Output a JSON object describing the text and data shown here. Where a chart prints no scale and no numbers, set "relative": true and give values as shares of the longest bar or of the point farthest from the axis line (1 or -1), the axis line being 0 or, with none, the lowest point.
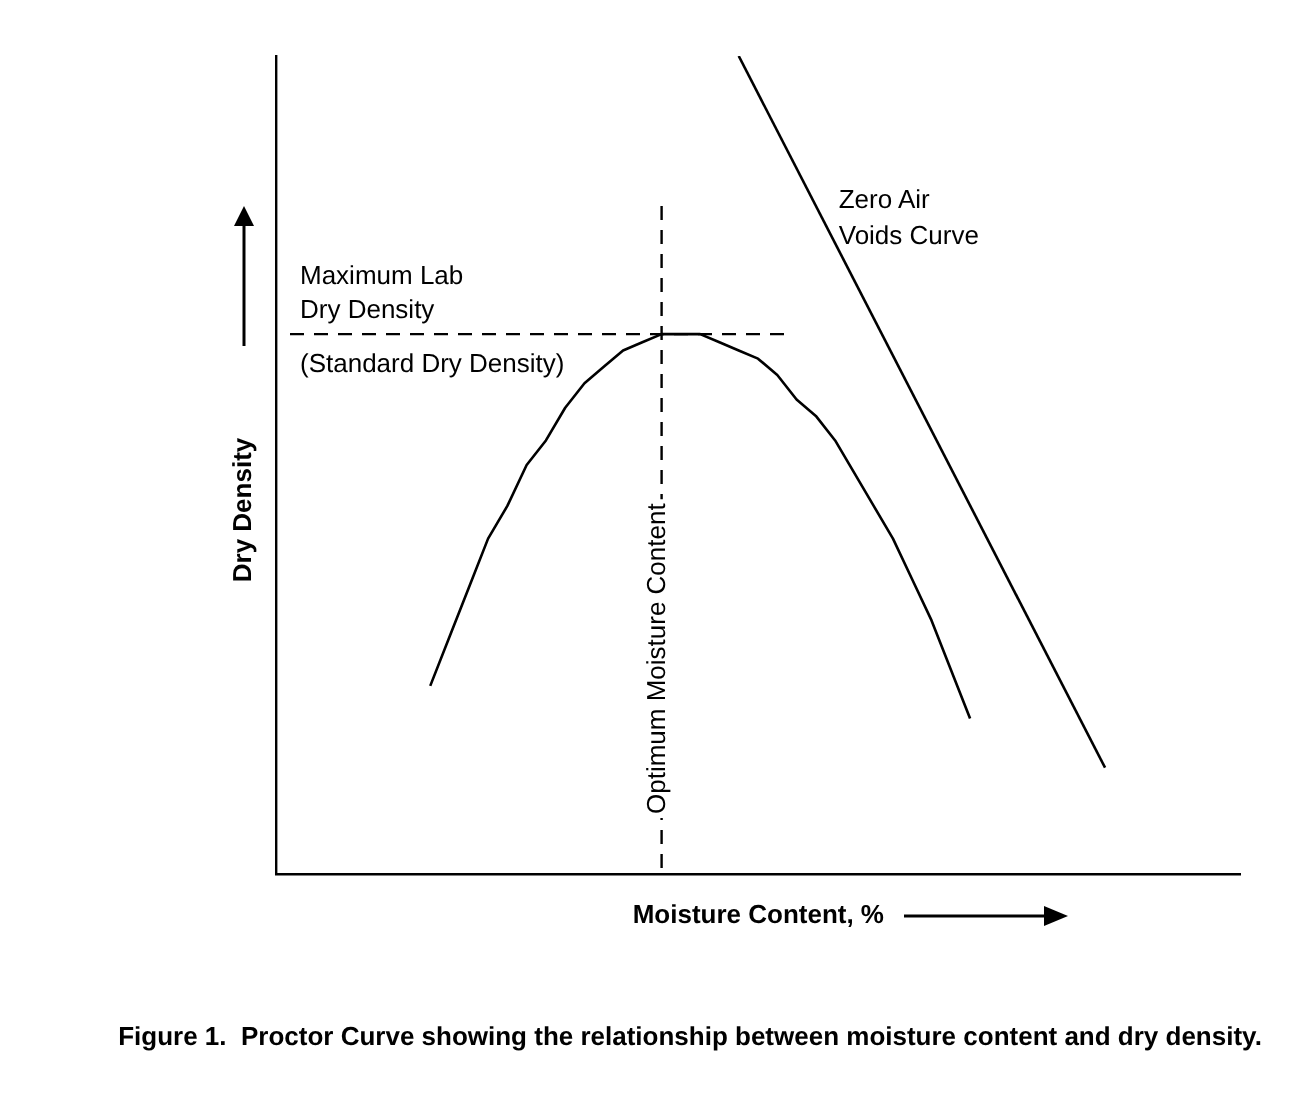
{
  "chart_data": {
    "type": "line",
    "relative": true,
    "title": "Figure 1.  Proctor Curve showing the relationship between moisture content and dry density.",
    "xlabel": "Moisture Content, %",
    "ylabel": "Dry Density",
    "grid": false,
    "legend": false,
    "marker": "none",
    "line_style": "solid",
    "categories": [
      null,
      null,
      null,
      null,
      null,
      null,
      null,
      null,
      null,
      null,
      null,
      null,
      null,
      null,
      null,
      null,
      null,
      null,
      null,
      null,
      null,
      null,
      null,
      null,
      null,
      null,
      null,
      null,
      null,
      null,
      null,
      null,
      null,
      null,
      null,
      null,
      null,
      null,
      null,
      null,
      null,
      null,
      null,
      null,
      null,
      null,
      null,
      null,
      null,
      null,
      null
    ],
    "series": [
      {
        "color": "#000000",
        "values": [
          null,
          null,
          null,
          null,
          null,
          null,
          null,
          null,
          0.23,
          0.29,
          0.35,
          0.41,
          0.45,
          0.5,
          0.53,
          0.57,
          0.6,
          0.62,
          0.64,
          0.65,
          0.66,
          0.66,
          0.66,
          0.65,
          0.64,
          0.63,
          0.61,
          0.58,
          0.56,
          0.53,
          0.49,
          0.45,
          0.41,
          0.36,
          0.31,
          0.25,
          0.19,
          null,
          null,
          null,
          null,
          null,
          null,
          null,
          null,
          null,
          null,
          null,
          null,
          null,
          null
        ]
      },
      {
        "name": "Zero Air\nVoids Curve",
        "color": "#000000",
        "values": [
          null,
          null,
          null,
          null,
          null,
          null,
          null,
          null,
          null,
          null,
          null,
          null,
          null,
          null,
          null,
          null,
          null,
          null,
          null,
          null,
          null,
          null,
          null,
          null,
          1.0,
          null,
          null,
          null,
          null,
          null,
          null,
          null,
          null,
          null,
          null,
          null,
          null,
          null,
          null,
          null,
          null,
          null,
          null,
          0.13,
          null,
          null,
          null,
          null,
          null,
          null,
          null
        ]
      }
    ],
    "ref_lines": [
      {
        "axis": "y",
        "label": "Maximum Lab\nDry Density\n(Standard Dry Density)",
        "line_style": "dashed"
      },
      {
        "axis": "x",
        "label": "Optimum Moisture Content",
        "line_style": "dashed"
      }
    ]
  }
}
